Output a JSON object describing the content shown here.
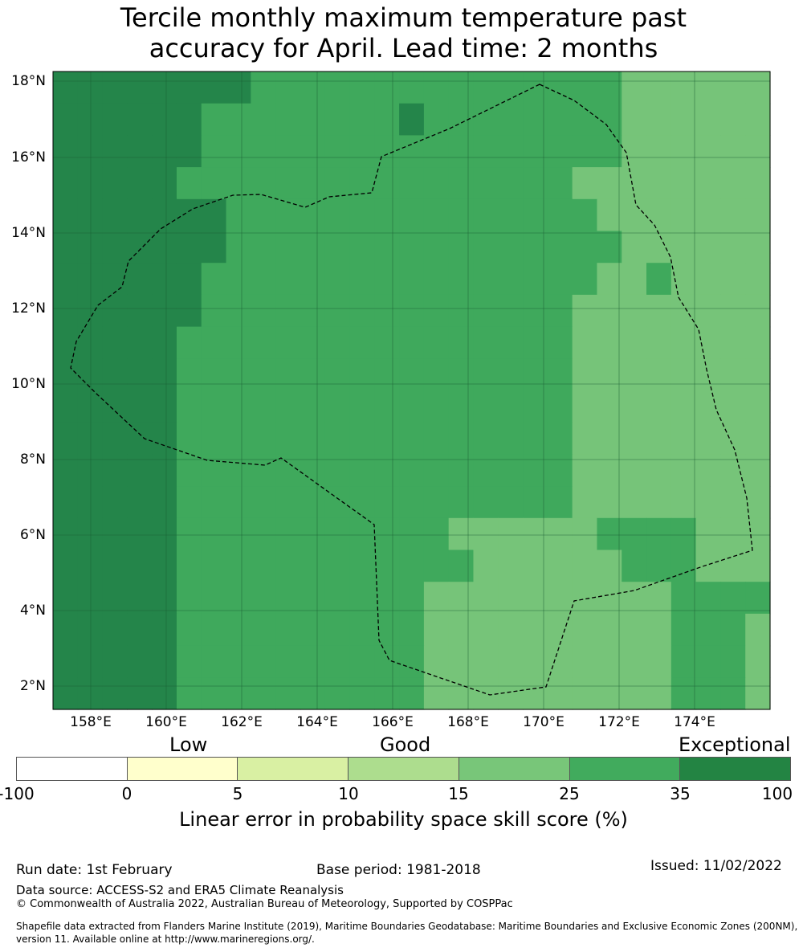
{
  "title": {
    "line1": "Tercile monthly maximum temperature past",
    "line2": "accuracy for April. Lead time: 2 months"
  },
  "map": {
    "lat_ticks": [
      "18°N",
      "16°N",
      "14°N",
      "12°N",
      "10°N",
      "8°N",
      "6°N",
      "4°N",
      "2°N"
    ],
    "lon_ticks": [
      "158°E",
      "160°E",
      "162°E",
      "164°E",
      "166°E",
      "168°E",
      "170°E",
      "172°E",
      "174°E"
    ],
    "grid_legend": "0=35-100 (dark green), 1=25-35, 2=15-25, 3=10-15",
    "grid": [
      "00000000111111111111111222222",
      "00000011111111011111111222222",
      "00000011111111111111111222222",
      "00000111111111111111122222222",
      "00000001111111111111112222222",
      "00000001111111111111111222222",
      "00000011111111111111112212222",
      "00000011111111111111122222222",
      "00000111111111111111122222222",
      "00000111111111111111122222222",
      "00000111111111111111122222222",
      "00000111111111111111122222222",
      "00000111111111111111122222222",
      "00000111111111111111122222222",
      "00000111111111112222221111222",
      "00000111111111111222222111222",
      "00000111111111122222222221111",
      "00000111111111122222222221112",
      "00000111111111122222222221112",
      "00000111111111122222222221112"
    ],
    "colors": {
      "dark": "#24854a",
      "mid": "#3fa95c",
      "light": "#76c479",
      "pale": "#aadb8e",
      "grid_line": "#1b5e33",
      "boundary": "#000000"
    }
  },
  "legend": {
    "categories": [
      "Low",
      "Good",
      "Exceptional"
    ],
    "ticks": [
      "-100",
      "0",
      "5",
      "10",
      "15",
      "25",
      "35",
      "100"
    ],
    "segment_colors": [
      "#ffffff",
      "#ffffcc",
      "#d9f0a3",
      "#addd8e",
      "#78c679",
      "#41ab5d",
      "#238443"
    ],
    "label": "Linear error in probability space skill score (%)"
  },
  "footer": {
    "run_date": "Run date: 1st February",
    "base_period": "Base period: 1981-2018",
    "issued": "Issued: 11/02/2022",
    "data_source": "Data source: ACCESS-S2 and ERA5 Climate Reanalysis",
    "copyright": "© Commonwealth of Australia 2022, Australian Bureau of Meteorology, Supported by COSPPac",
    "shapefile": "Shapefile data extracted from Flanders Marine Institute (2019), Maritime Boundaries Geodatabase: Maritime Boundaries and Exclusive Economic Zones (200NM), version 11. Available online at http://www.marineregions.org/."
  }
}
